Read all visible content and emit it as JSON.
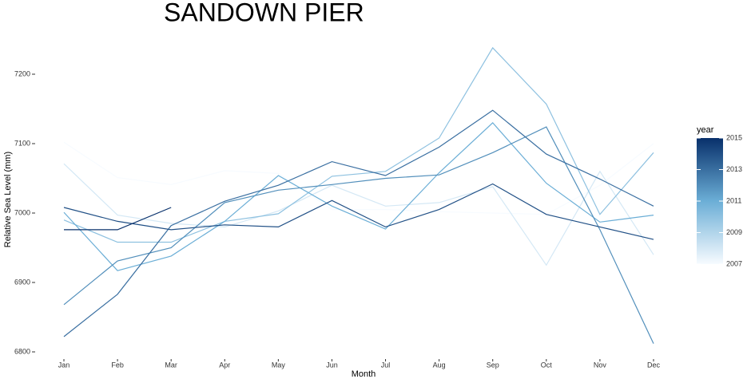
{
  "chart_data": {
    "type": "line",
    "title": "SANDOWN PIER",
    "x_label": "Month",
    "y_label": "Relative Sea Level (mm)",
    "categories": [
      "Jan",
      "Feb",
      "Mar",
      "Apr",
      "May",
      "Jun",
      "Jul",
      "Aug",
      "Sep",
      "Oct",
      "Nov",
      "Dec"
    ],
    "ylim": [
      6790,
      7250
    ],
    "yticks": [
      6800,
      6900,
      7000,
      7100,
      7200
    ],
    "colorbar": {
      "title": "year",
      "lim": [
        2007,
        2015
      ],
      "ticks": [
        2007,
        2009,
        2011,
        2013,
        2015
      ],
      "colors": [
        "#f7fbff",
        "#6baed6",
        "#08306b"
      ]
    },
    "series": [
      {
        "year": 2007,
        "values": [
          7102,
          7051,
          7041,
          7061,
          7057,
          7005,
          7005,
          7002,
          7000,
          6998,
          7040,
          7100
        ]
      },
      {
        "year": 2008,
        "values": [
          7071,
          6997,
          6985,
          6980,
          7003,
          7040,
          7010,
          7015,
          7038,
          6925,
          7060,
          6940
        ]
      },
      {
        "year": 2010,
        "values": [
          6990,
          6958,
          6958,
          6988,
          6999,
          7053,
          7060,
          7108,
          7238,
          7157,
          6998,
          7087
        ]
      },
      {
        "year": 2011,
        "values": [
          7001,
          6917,
          6938,
          6988,
          7054,
          7010,
          6977,
          7058,
          7130,
          7043,
          6987,
          6997
        ]
      },
      {
        "year": 2012,
        "values": [
          6868,
          6931,
          6950,
          7015,
          7033,
          7041,
          7050,
          7055,
          7087,
          7124,
          6976,
          6812
        ]
      },
      {
        "year": 2013,
        "values": [
          6822,
          6883,
          6982,
          7017,
          7040,
          7074,
          7054,
          7095,
          7148,
          7085,
          7049,
          7010
        ]
      },
      {
        "year": 2014,
        "values": [
          7008,
          6988,
          6976,
          6983,
          6980,
          7018,
          6980,
          7005,
          7042,
          6998,
          6980,
          6962
        ]
      },
      {
        "year": 2015,
        "values": [
          6976,
          6976,
          7008,
          null,
          null,
          null,
          null,
          null,
          null,
          null,
          null,
          null
        ]
      }
    ]
  }
}
